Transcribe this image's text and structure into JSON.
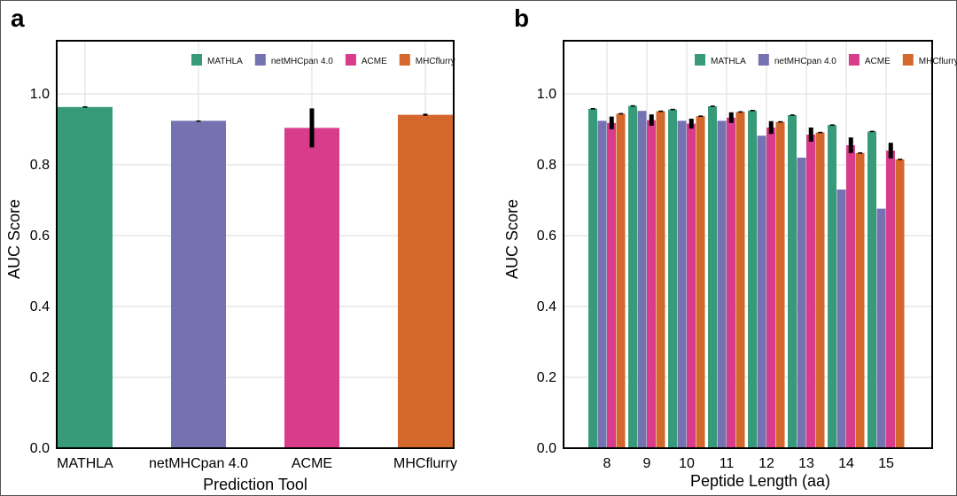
{
  "chart_data": [
    {
      "panel": "a",
      "type": "bar",
      "categories": [
        "MATHLA",
        "netMHCpan 4.0",
        "ACME",
        "MHCflurry"
      ],
      "values": [
        0.963,
        0.924,
        0.904,
        0.941
      ],
      "errors": [
        0.002,
        0.001,
        0.055,
        0.003
      ],
      "colors": [
        "#379b79",
        "#7472b0",
        "#d83c8a",
        "#d3672c"
      ],
      "xlabel": "Prediction Tool",
      "ylabel": "AUC Score",
      "ylim": [
        0,
        1.15
      ],
      "yticks": [
        "0.0",
        "0.2",
        "0.4",
        "0.6",
        "0.8",
        "1.0"
      ],
      "legend": {
        "position": "top-right",
        "entries": [
          "MATHLA",
          "netMHCpan 4.0",
          "ACME",
          "MHCflurry"
        ]
      },
      "grid": true
    },
    {
      "panel": "b",
      "type": "bar",
      "categories": [
        "8",
        "9",
        "10",
        "11",
        "12",
        "13",
        "14",
        "15"
      ],
      "series": [
        {
          "name": "MATHLA",
          "color": "#379b79",
          "values": [
            0.958,
            0.966,
            0.956,
            0.965,
            0.953,
            0.94,
            0.912,
            0.894
          ],
          "errors": [
            0.002,
            0.002,
            0.002,
            0.002,
            0.002,
            0.002,
            0.002,
            0.002
          ]
        },
        {
          "name": "netMHCpan 4.0",
          "color": "#7472b0",
          "values": [
            0.924,
            0.952,
            0.924,
            0.924,
            0.882,
            0.82,
            0.73,
            0.676
          ],
          "errors": [
            0.0,
            0.0,
            0.0,
            0.0,
            0.0,
            0.0,
            0.0,
            0.0
          ]
        },
        {
          "name": "ACME",
          "color": "#d83c8a",
          "values": [
            0.918,
            0.926,
            0.916,
            0.933,
            0.905,
            0.885,
            0.855,
            0.84
          ],
          "errors": [
            0.018,
            0.016,
            0.014,
            0.015,
            0.018,
            0.02,
            0.022,
            0.022
          ]
        },
        {
          "name": "MHCflurry",
          "color": "#d3672c",
          "values": [
            0.944,
            0.951,
            0.937,
            0.949,
            0.921,
            0.891,
            0.833,
            0.815
          ],
          "errors": [
            0.002,
            0.002,
            0.002,
            0.002,
            0.002,
            0.002,
            0.002,
            0.002
          ]
        }
      ],
      "xlabel": "Peptide Length (aa)",
      "ylabel": "AUC Score",
      "ylim": [
        0,
        1.15
      ],
      "yticks": [
        "0.0",
        "0.2",
        "0.4",
        "0.6",
        "0.8",
        "1.0"
      ],
      "legend": {
        "position": "top-right",
        "entries": [
          "MATHLA",
          "netMHCpan 4.0",
          "ACME",
          "MHCflurry"
        ]
      },
      "grid": true
    }
  ]
}
